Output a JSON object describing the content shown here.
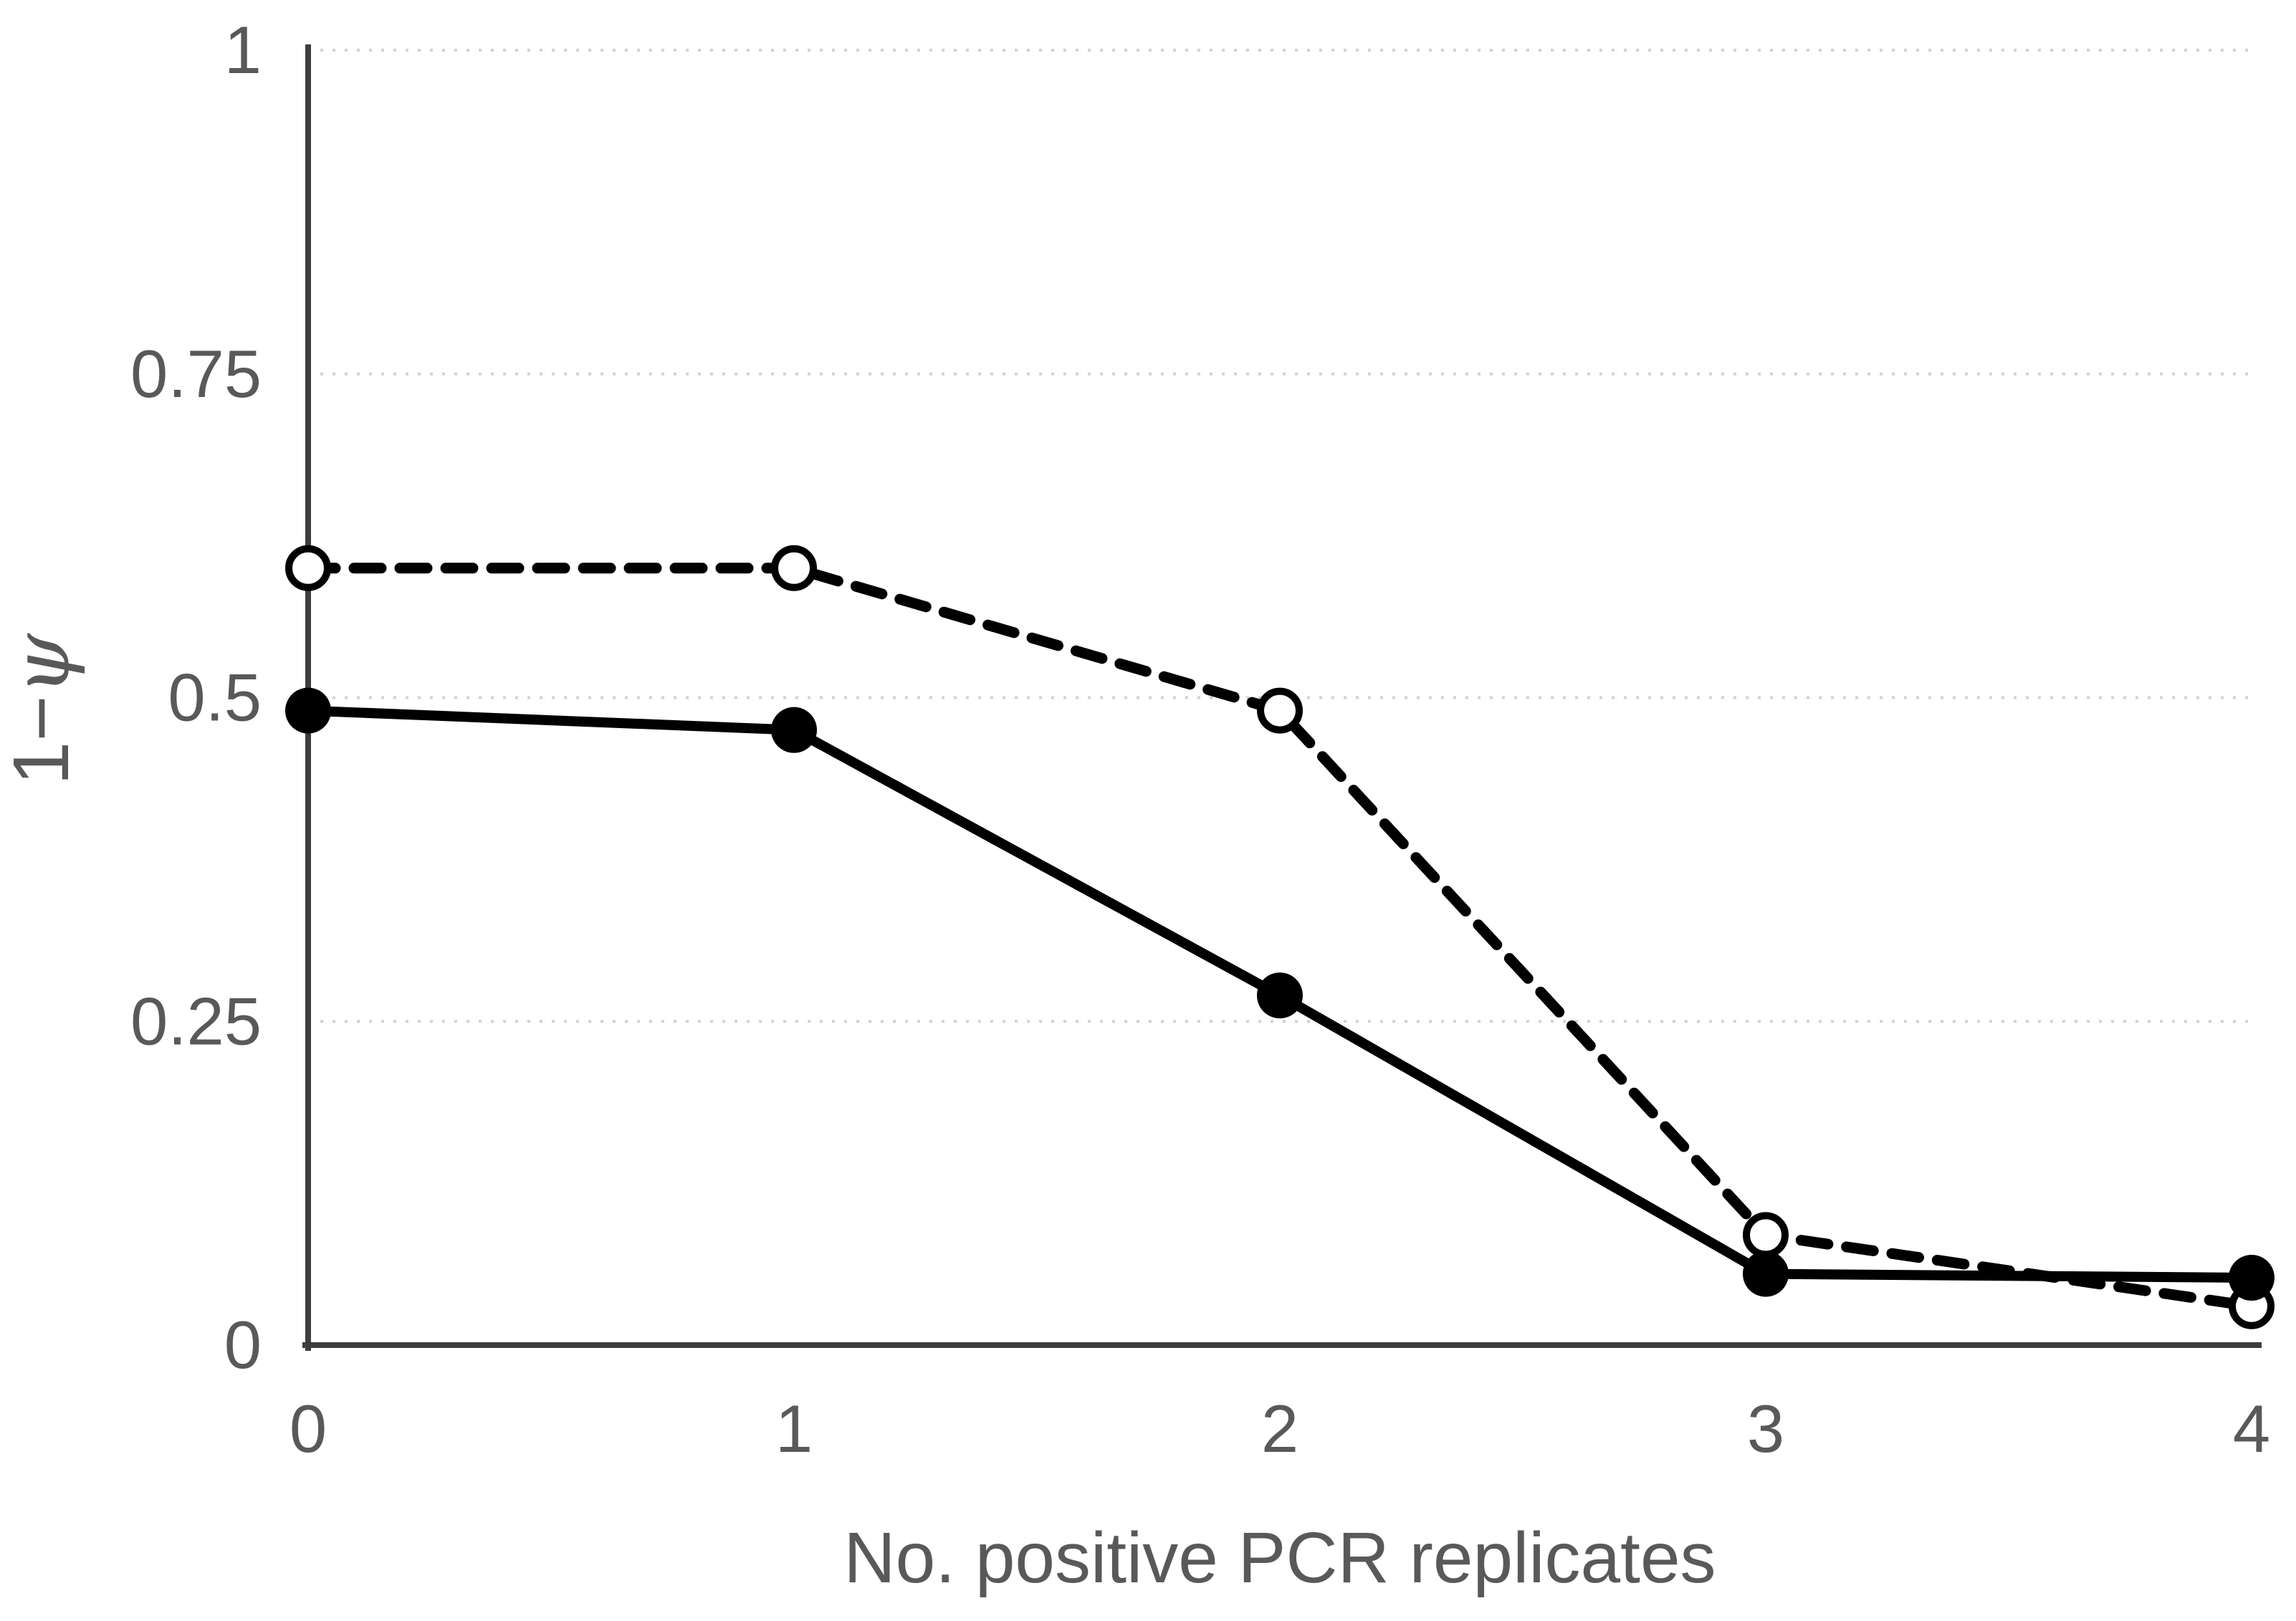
{
  "figure": {
    "background": "#ffffff"
  },
  "chart_data": {
    "type": "line",
    "title": "",
    "xlabel": "No. positive PCR replicates",
    "ylabel": "1−ψ",
    "ylabel_prefix": "1−",
    "ylabel_symbol": "ψ",
    "categories": [
      0,
      1,
      2,
      3,
      4
    ],
    "x_tick_labels": [
      "0",
      "1",
      "2",
      "3",
      "4"
    ],
    "y_ticks": [
      0,
      0.25,
      0.5,
      0.75,
      1
    ],
    "y_tick_labels": [
      "0",
      "0.25",
      "0.5",
      "0.75",
      "1"
    ],
    "xlim": [
      0,
      4
    ],
    "ylim": [
      0,
      1
    ],
    "grid": "horizontal dotted",
    "legend_position": "none",
    "series": [
      {
        "name": "open circles dashed line",
        "marker": "open-circle",
        "line_style": "dashed",
        "color": "#000000",
        "values": [
          0.6,
          0.6,
          0.49,
          0.085,
          0.03
        ]
      },
      {
        "name": "filled circles solid line",
        "marker": "filled-circle",
        "line_style": "solid",
        "color": "#000000",
        "values": [
          0.49,
          0.475,
          0.27,
          0.055,
          0.052
        ]
      }
    ],
    "colors": {
      "series": "#000000",
      "marker_fill_open": "#ffffff",
      "axis": "#3d3d3d",
      "grid": "#d2d2d2",
      "text": "#595959"
    }
  }
}
